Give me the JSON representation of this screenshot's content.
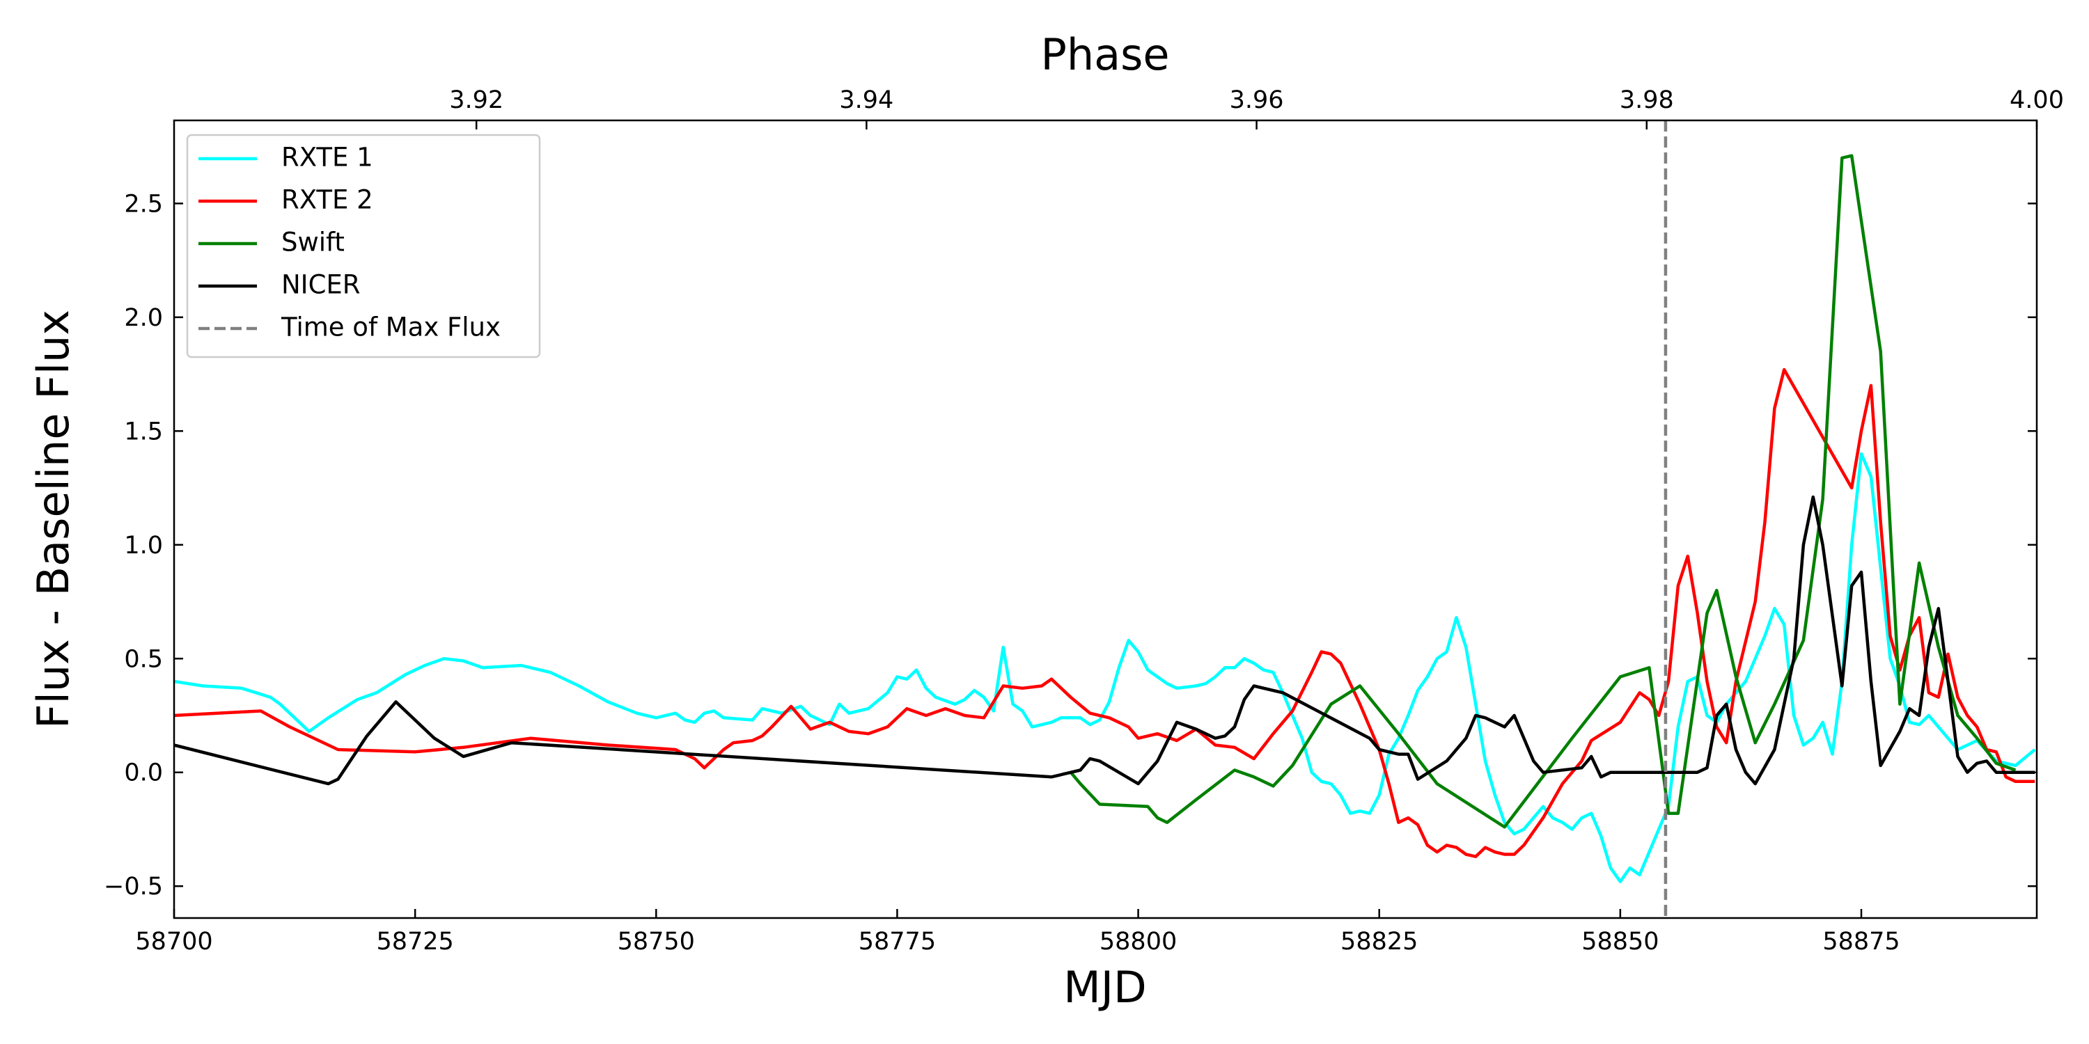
{
  "chart_data": {
    "type": "line",
    "title": "Phase",
    "xlabel": "MJD",
    "ylabel": "Flux - Baseline Flux",
    "xlim": [
      58700,
      58893.2
    ],
    "xticks": [
      58700,
      58725,
      58750,
      58775,
      58800,
      58825,
      58850,
      58875
    ],
    "x2lim": [
      3.9045,
      4.0
    ],
    "x2ticks": [
      3.92,
      3.94,
      3.96,
      3.98,
      {
        "value": 4.0,
        "label": "4.00"
      }
    ],
    "ylim": [
      -0.64,
      2.865
    ],
    "yticks": [
      {
        "value": -0.5,
        "label": "−0.5"
      },
      {
        "value": 0,
        "label": "0.0"
      },
      0.5,
      {
        "value": 1,
        "label": "1.0"
      },
      1.5,
      {
        "value": 2,
        "label": "2.0"
      },
      2.5
    ],
    "legend": "upper left",
    "grid": false,
    "series": [
      {
        "name": "RXTE 1",
        "color": "#00ffff",
        "x": [
          58700,
          58703,
          58707,
          58710,
          58711,
          58713,
          58714,
          58716,
          58719,
          58721,
          58724,
          58726,
          58728,
          58730,
          58732,
          58736,
          58739,
          58742,
          58745,
          58748,
          58750,
          58752,
          58753,
          58754,
          58755,
          58756,
          58757,
          58760,
          58761,
          58763,
          58765,
          58766,
          58768,
          58769,
          58770,
          58772,
          58774,
          58775,
          58776,
          58777,
          58778,
          58779,
          58781,
          58782,
          58783,
          58784,
          58785,
          58786,
          58787,
          58788,
          58789,
          58791,
          58792,
          58794,
          58795,
          58796,
          58797,
          58798,
          58799,
          58800,
          58801,
          58803,
          58804,
          58806,
          58807,
          58808,
          58809,
          58810,
          58811,
          58812,
          58813,
          58814,
          58815,
          58816,
          58817,
          58818,
          58819,
          58820,
          58821,
          58822,
          58823,
          58824,
          58825,
          58826,
          58827,
          58828,
          58829,
          58830,
          58831,
          58832,
          58833,
          58834,
          58835,
          58836,
          58837,
          58838,
          58839,
          58840,
          58841,
          58842,
          58843,
          58844,
          58845,
          58846,
          58847,
          58848,
          58849,
          58850,
          58851,
          58852,
          58853,
          58854,
          58855,
          58856,
          58857,
          58858,
          58859,
          58860,
          58861,
          58862,
          58863,
          58864,
          58865,
          58866,
          58867,
          58868,
          58869,
          58870,
          58871,
          58872,
          58873,
          58874,
          58875,
          58876,
          58877,
          58878,
          58879,
          58880,
          58881,
          58882,
          58883,
          58884,
          58885,
          58887,
          58889,
          58891,
          58893
        ],
        "values": [
          0.4,
          0.38,
          0.37,
          0.33,
          0.3,
          0.22,
          0.18,
          0.24,
          0.32,
          0.35,
          0.43,
          0.47,
          0.5,
          0.49,
          0.46,
          0.47,
          0.44,
          0.38,
          0.31,
          0.26,
          0.24,
          0.26,
          0.23,
          0.22,
          0.26,
          0.27,
          0.24,
          0.23,
          0.28,
          0.26,
          0.29,
          0.25,
          0.21,
          0.3,
          0.26,
          0.28,
          0.35,
          0.42,
          0.41,
          0.45,
          0.37,
          0.33,
          0.3,
          0.32,
          0.36,
          0.33,
          0.27,
          0.55,
          0.3,
          0.27,
          0.2,
          0.22,
          0.24,
          0.24,
          0.21,
          0.23,
          0.31,
          0.46,
          0.58,
          0.53,
          0.45,
          0.39,
          0.37,
          0.38,
          0.39,
          0.42,
          0.46,
          0.46,
          0.5,
          0.48,
          0.45,
          0.44,
          0.35,
          0.25,
          0.15,
          0.0,
          -0.04,
          -0.05,
          -0.1,
          -0.18,
          -0.17,
          -0.18,
          -0.1,
          0.08,
          0.15,
          0.25,
          0.36,
          0.42,
          0.5,
          0.53,
          0.68,
          0.55,
          0.3,
          0.05,
          -0.1,
          -0.22,
          -0.27,
          -0.25,
          -0.2,
          -0.15,
          -0.2,
          -0.22,
          -0.25,
          -0.2,
          -0.18,
          -0.28,
          -0.42,
          -0.48,
          -0.42,
          -0.45,
          -0.35,
          -0.25,
          -0.15,
          0.2,
          0.4,
          0.42,
          0.25,
          0.22,
          0.3,
          0.35,
          0.4,
          0.5,
          0.6,
          0.72,
          0.65,
          0.25,
          0.12,
          0.15,
          0.22,
          0.08,
          0.4,
          1.0,
          1.4,
          1.3,
          0.9,
          0.5,
          0.38,
          0.22,
          0.21,
          0.25,
          0.2,
          0.15,
          0.1,
          0.14,
          0.05,
          0.03,
          0.1
        ]
      },
      {
        "name": "RXTE 2",
        "color": "#ff0000",
        "x": [
          58700,
          58709,
          58712,
          58717,
          58725,
          58730,
          58737,
          58745,
          58752,
          58754,
          58755,
          58757,
          58758,
          58760,
          58761,
          58762,
          58764,
          58766,
          58768,
          58770,
          58772,
          58774,
          58776,
          58778,
          58780,
          58782,
          58784,
          58786,
          58788,
          58790,
          58791,
          58793,
          58795,
          58797,
          58799,
          58800,
          58802,
          58804,
          58806,
          58808,
          58810,
          58812,
          58814,
          58816,
          58818,
          58819,
          58820,
          58821,
          58823,
          58825,
          58826,
          58827,
          58828,
          58829,
          58830,
          58831,
          58832,
          58833,
          58834,
          58835,
          58836,
          58837,
          58838,
          58839,
          58840,
          58842,
          58844,
          58846,
          58847,
          58850,
          58852,
          58853,
          58854,
          58855,
          58856,
          58857,
          58858,
          58859,
          58860,
          58861,
          58862,
          58864,
          58865,
          58866,
          58867,
          58874,
          58875,
          58876,
          58877,
          58878,
          58879,
          58880,
          58881,
          58882,
          58883,
          58884,
          58885,
          58886,
          58887,
          58888,
          58889,
          58890,
          58891,
          58893
        ],
        "values": [
          0.25,
          0.27,
          0.2,
          0.1,
          0.09,
          0.11,
          0.15,
          0.12,
          0.1,
          0.06,
          0.02,
          0.1,
          0.13,
          0.14,
          0.16,
          0.2,
          0.29,
          0.19,
          0.22,
          0.18,
          0.17,
          0.2,
          0.28,
          0.25,
          0.28,
          0.25,
          0.24,
          0.38,
          0.37,
          0.38,
          0.41,
          0.33,
          0.26,
          0.24,
          0.2,
          0.15,
          0.17,
          0.14,
          0.19,
          0.12,
          0.11,
          0.06,
          0.17,
          0.27,
          0.44,
          0.53,
          0.52,
          0.48,
          0.3,
          0.1,
          -0.05,
          -0.22,
          -0.2,
          -0.23,
          -0.32,
          -0.35,
          -0.32,
          -0.33,
          -0.36,
          -0.37,
          -0.33,
          -0.35,
          -0.36,
          -0.36,
          -0.32,
          -0.2,
          -0.05,
          0.05,
          0.14,
          0.22,
          0.35,
          0.32,
          0.25,
          0.4,
          0.82,
          0.95,
          0.7,
          0.4,
          0.2,
          0.13,
          0.4,
          0.75,
          1.1,
          1.6,
          1.77,
          1.25,
          1.5,
          1.7,
          1.1,
          0.6,
          0.45,
          0.6,
          0.68,
          0.35,
          0.33,
          0.52,
          0.33,
          0.25,
          0.2,
          0.1,
          0.09,
          -0.02,
          -0.04,
          -0.04
        ]
      },
      {
        "name": "Swift",
        "color": "#008000",
        "x": [
          58793,
          58794,
          58796,
          58801,
          58802,
          58803,
          58806,
          58810,
          58812,
          58814,
          58816,
          58820,
          58823,
          58827,
          58831,
          58838,
          58845,
          58850,
          58853,
          58855,
          58856,
          58859,
          58860,
          58862,
          58864,
          58866,
          58869,
          58871,
          58873,
          58874,
          58877,
          58879,
          58881,
          58883,
          58885,
          58887,
          58889,
          58891
        ],
        "values": [
          0.0,
          -0.05,
          -0.14,
          -0.15,
          -0.2,
          -0.22,
          -0.12,
          0.01,
          -0.02,
          -0.06,
          0.03,
          0.3,
          0.38,
          0.17,
          -0.05,
          -0.24,
          0.15,
          0.42,
          0.46,
          -0.18,
          -0.18,
          0.7,
          0.8,
          0.42,
          0.13,
          0.3,
          0.58,
          1.2,
          2.7,
          2.71,
          1.85,
          0.3,
          0.92,
          0.55,
          0.25,
          0.15,
          0.04,
          0.01
        ]
      },
      {
        "name": "NICER",
        "color": "#000000",
        "x": [
          58700,
          58716,
          58717,
          58720,
          58723,
          58727,
          58730,
          58735,
          58791,
          58794,
          58795,
          58796,
          58800,
          58802,
          58804,
          58806,
          58808,
          58809,
          58810,
          58811,
          58812,
          58815,
          58824,
          58825,
          58827,
          58828,
          58829,
          58832,
          58834,
          58835,
          58836,
          58838,
          58839,
          58841,
          58842,
          58846,
          58847,
          58848,
          58849,
          58858,
          58859,
          58860,
          58861,
          58862,
          58863,
          58864,
          58866,
          58867,
          58868,
          58869,
          58870,
          58871,
          58873,
          58874,
          58875,
          58876,
          58877,
          58879,
          58880,
          58881,
          58882,
          58883,
          58884,
          58885,
          58886,
          58887,
          58888,
          58889,
          58893
        ],
        "values": [
          0.12,
          -0.05,
          -0.03,
          0.16,
          0.31,
          0.15,
          0.07,
          0.13,
          -0.02,
          0.01,
          0.06,
          0.05,
          -0.05,
          0.05,
          0.22,
          0.19,
          0.15,
          0.16,
          0.2,
          0.32,
          0.38,
          0.35,
          0.15,
          0.1,
          0.08,
          0.08,
          -0.03,
          0.05,
          0.15,
          0.25,
          0.24,
          0.2,
          0.25,
          0.05,
          0.0,
          0.02,
          0.07,
          -0.02,
          0.0,
          0.0,
          0.02,
          0.25,
          0.3,
          0.1,
          0.0,
          -0.05,
          0.1,
          0.3,
          0.5,
          1.0,
          1.21,
          1.0,
          0.38,
          0.82,
          0.88,
          0.4,
          0.03,
          0.18,
          0.28,
          0.25,
          0.55,
          0.72,
          0.4,
          0.07,
          0.0,
          0.04,
          0.05,
          0.0,
          0.0
        ]
      }
    ],
    "vline": {
      "name": "Time of Max Flux",
      "value": 58854.7,
      "color": "#808080"
    }
  }
}
